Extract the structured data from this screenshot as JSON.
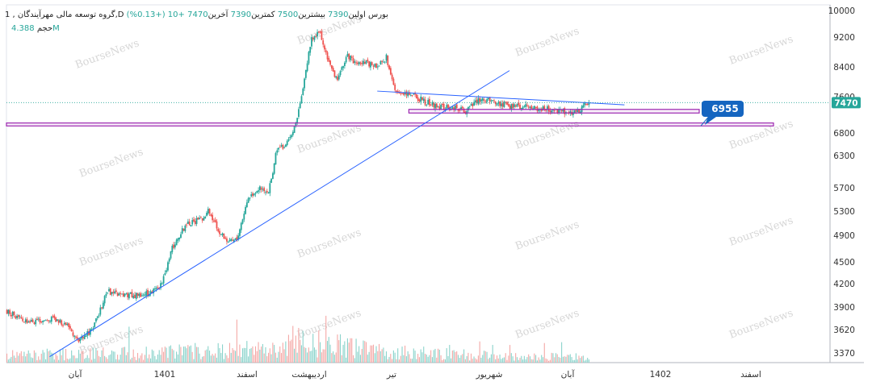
{
  "header": {
    "index": "1",
    "name": "گروه توسعه مالی مهرآیندگان",
    "interval": "D",
    "exchange": "بورس",
    "open_label": "اولین",
    "open": "7390",
    "high_label": "بیشترین",
    "high": "7500",
    "low_label": "کمترین",
    "low": "7390",
    "close_label": "آخرین",
    "close": "7470",
    "change": "+10",
    "change_pct": "(+0.13%)",
    "volume_label": "حجم",
    "volume": "4.388M"
  },
  "price_badge": "7470",
  "callout_label": "6955",
  "watermark": "BourseNews",
  "colors": {
    "up": "#26a69a",
    "down": "#ef5350",
    "trendline": "#2962ff",
    "zone": "#9c27b0",
    "callout": "#1565c0"
  },
  "chart_data": {
    "type": "candlestick",
    "y_ticks": [
      10000,
      9200,
      8400,
      7600,
      6800,
      6300,
      5700,
      5300,
      4900,
      4500,
      4200,
      3900,
      3620,
      3370
    ],
    "x_ticks": [
      "آبان",
      "1401",
      "اسفند",
      "اردیبهشت",
      "تیر",
      "شهریور",
      "آبان",
      "1402",
      "اسفند"
    ],
    "ylim": [
      3250,
      10000
    ],
    "price_path": [
      [
        0,
        3850
      ],
      [
        10,
        3750
      ],
      [
        20,
        3720
      ],
      [
        30,
        3760
      ],
      [
        40,
        3700
      ],
      [
        50,
        3480
      ],
      [
        60,
        3640
      ],
      [
        70,
        4100
      ],
      [
        80,
        4060
      ],
      [
        90,
        4050
      ],
      [
        100,
        4080
      ],
      [
        108,
        4200
      ],
      [
        115,
        4700
      ],
      [
        125,
        5100
      ],
      [
        135,
        5150
      ],
      [
        140,
        5300
      ],
      [
        148,
        4950
      ],
      [
        155,
        4800
      ],
      [
        160,
        4850
      ],
      [
        168,
        5550
      ],
      [
        175,
        5700
      ],
      [
        182,
        5600
      ],
      [
        188,
        6450
      ],
      [
        194,
        6500
      ],
      [
        200,
        6900
      ],
      [
        206,
        7800
      ],
      [
        212,
        9200
      ],
      [
        218,
        9300
      ],
      [
        224,
        8500
      ],
      [
        230,
        8000
      ],
      [
        236,
        8700
      ],
      [
        242,
        8550
      ],
      [
        250,
        8500
      ],
      [
        258,
        8400
      ],
      [
        264,
        8650
      ],
      [
        270,
        7750
      ],
      [
        280,
        7700
      ],
      [
        290,
        7500
      ],
      [
        300,
        7400
      ],
      [
        310,
        7350
      ],
      [
        320,
        7300
      ],
      [
        330,
        7550
      ],
      [
        340,
        7480
      ],
      [
        350,
        7400
      ],
      [
        360,
        7380
      ],
      [
        370,
        7350
      ],
      [
        380,
        7300
      ],
      [
        390,
        7250
      ],
      [
        398,
        7300
      ],
      [
        405,
        7470
      ]
    ],
    "volume_path": [
      [
        0,
        0.3
      ],
      [
        50,
        0.35
      ],
      [
        100,
        0.4
      ],
      [
        150,
        0.5
      ],
      [
        190,
        0.55
      ],
      [
        205,
        0.9
      ],
      [
        215,
        0.8
      ],
      [
        260,
        0.45
      ],
      [
        300,
        0.35
      ],
      [
        350,
        0.25
      ],
      [
        405,
        0.22
      ]
    ],
    "horizontal_zones": [
      {
        "from": 6955,
        "to": 7020,
        "x_start": 0,
        "x_end": 540
      },
      {
        "from": 7240,
        "to": 7320,
        "x_start": 280,
        "x_end": 485
      }
    ],
    "trendlines": [
      {
        "from": [
          30,
          3330
        ],
        "to": [
          350,
          8300
        ]
      },
      {
        "from": [
          258,
          7750
        ],
        "to": [
          430,
          7420
        ]
      }
    ],
    "last_price": 7470,
    "annotation": {
      "price": 6955
    }
  }
}
